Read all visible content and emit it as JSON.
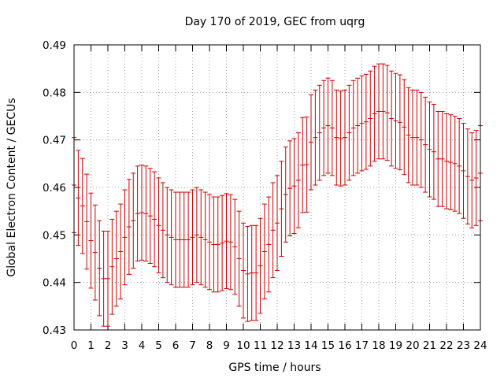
{
  "chart_data": {
    "type": "scatter",
    "title": "Day 170 of 2019, GEC from uqrg",
    "xlabel": "GPS time / hours",
    "ylabel": "Global Electron Content / GECUs",
    "xlim": [
      0,
      24
    ],
    "ylim": [
      0.43,
      0.49
    ],
    "x_ticks": [
      0,
      1,
      2,
      3,
      4,
      5,
      6,
      7,
      8,
      9,
      10,
      11,
      12,
      13,
      14,
      15,
      16,
      17,
      18,
      19,
      20,
      21,
      22,
      23,
      24
    ],
    "y_ticks": [
      0.43,
      0.44,
      0.45,
      0.46,
      0.47,
      0.48,
      0.49
    ],
    "grid": true,
    "error_bars": true,
    "series_color": "#cc0000",
    "x": [
      0.0,
      0.25,
      0.5,
      0.75,
      1.0,
      1.25,
      1.5,
      1.75,
      2.0,
      2.25,
      2.5,
      2.75,
      3.0,
      3.25,
      3.5,
      3.75,
      4.0,
      4.25,
      4.5,
      4.75,
      5.0,
      5.25,
      5.5,
      5.75,
      6.0,
      6.25,
      6.5,
      6.75,
      7.0,
      7.25,
      7.5,
      7.75,
      8.0,
      8.25,
      8.5,
      8.75,
      9.0,
      9.25,
      9.5,
      9.75,
      10.0,
      10.25,
      10.5,
      10.75,
      11.0,
      11.25,
      11.5,
      11.75,
      12.0,
      12.25,
      12.5,
      12.75,
      13.0,
      13.25,
      13.5,
      13.75,
      14.0,
      14.25,
      14.5,
      14.75,
      15.0,
      15.25,
      15.5,
      15.75,
      16.0,
      16.25,
      16.5,
      16.75,
      17.0,
      17.25,
      17.5,
      17.75,
      18.0,
      18.25,
      18.5,
      18.75,
      19.0,
      19.25,
      19.5,
      19.75,
      20.0,
      20.25,
      20.5,
      20.75,
      21.0,
      21.25,
      21.5,
      21.75,
      22.0,
      22.25,
      22.5,
      22.75,
      23.0,
      23.25,
      23.5,
      23.75,
      24.0
    ],
    "y": [
      0.4605,
      0.4578,
      0.4561,
      0.4528,
      0.4488,
      0.4463,
      0.443,
      0.4408,
      0.4408,
      0.4433,
      0.445,
      0.4465,
      0.4495,
      0.4517,
      0.453,
      0.4545,
      0.4547,
      0.4545,
      0.454,
      0.4533,
      0.452,
      0.451,
      0.45,
      0.4495,
      0.449,
      0.449,
      0.449,
      0.449,
      0.4495,
      0.45,
      0.4495,
      0.449,
      0.4485,
      0.448,
      0.448,
      0.4483,
      0.4487,
      0.4485,
      0.4475,
      0.445,
      0.4425,
      0.4418,
      0.442,
      0.442,
      0.4435,
      0.4465,
      0.448,
      0.451,
      0.4525,
      0.4555,
      0.4585,
      0.4598,
      0.4603,
      0.4615,
      0.4647,
      0.4648,
      0.4695,
      0.4705,
      0.4715,
      0.4725,
      0.473,
      0.4725,
      0.4705,
      0.4703,
      0.4705,
      0.4715,
      0.4725,
      0.473,
      0.4735,
      0.4738,
      0.4745,
      0.4755,
      0.476,
      0.476,
      0.4757,
      0.4745,
      0.474,
      0.4737,
      0.4727,
      0.471,
      0.4705,
      0.4705,
      0.47,
      0.469,
      0.468,
      0.4675,
      0.466,
      0.466,
      0.4655,
      0.4653,
      0.465,
      0.4645,
      0.4635,
      0.4623,
      0.4615,
      0.462,
      0.463
    ],
    "err": [
      0.01,
      0.01,
      0.01,
      0.01,
      0.01,
      0.01,
      0.01,
      0.01,
      0.01,
      0.01,
      0.01,
      0.01,
      0.01,
      0.01,
      0.01,
      0.01,
      0.01,
      0.01,
      0.01,
      0.01,
      0.01,
      0.01,
      0.01,
      0.01,
      0.01,
      0.01,
      0.01,
      0.01,
      0.01,
      0.01,
      0.01,
      0.01,
      0.01,
      0.01,
      0.01,
      0.01,
      0.01,
      0.01,
      0.01,
      0.01,
      0.01,
      0.01,
      0.01,
      0.01,
      0.01,
      0.01,
      0.01,
      0.01,
      0.01,
      0.01,
      0.01,
      0.01,
      0.01,
      0.01,
      0.01,
      0.01,
      0.01,
      0.01,
      0.01,
      0.01,
      0.01,
      0.01,
      0.01,
      0.01,
      0.01,
      0.01,
      0.01,
      0.01,
      0.01,
      0.01,
      0.01,
      0.01,
      0.01,
      0.01,
      0.01,
      0.01,
      0.01,
      0.01,
      0.01,
      0.01,
      0.01,
      0.01,
      0.01,
      0.01,
      0.01,
      0.01,
      0.01,
      0.01,
      0.01,
      0.01,
      0.01,
      0.01,
      0.01,
      0.01,
      0.01,
      0.01,
      0.01
    ]
  }
}
